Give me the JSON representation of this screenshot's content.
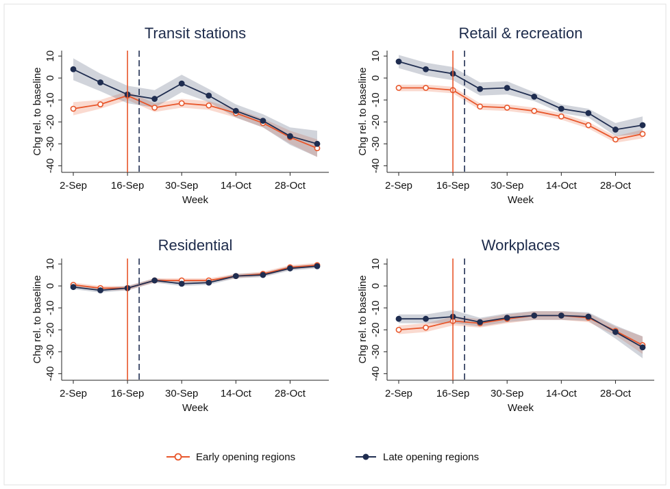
{
  "chart_data": [
    {
      "type": "line",
      "title": "Transit stations",
      "ylabel": "Chg rel. to baseline",
      "xlabel": "Week",
      "categories": [
        "2-Sep",
        null,
        "16-Sep",
        null,
        "30-Sep",
        null,
        "14-Oct",
        null,
        "28-Oct",
        null
      ],
      "ylim": [
        -43,
        12.5
      ],
      "yticks": [
        -40,
        -30,
        -20,
        -10,
        0,
        10
      ],
      "vlines": [
        {
          "at": 2,
          "color": "#e8562a",
          "dash": false
        },
        {
          "at": 2.43,
          "color": "#1f2d50",
          "dash": true
        }
      ],
      "series": [
        {
          "name": "Early opening regions",
          "color": "#e8562a",
          "marker": "hollow",
          "values": [
            -14,
            -12,
            -8,
            -13.5,
            -11.5,
            -12.5,
            -16,
            -20.5,
            -27,
            -32
          ],
          "lower": [
            -17,
            -14,
            -10,
            -15.5,
            -13.5,
            -14.5,
            -18,
            -22.5,
            -30,
            -36
          ],
          "upper": [
            -11,
            -10,
            -6,
            -11.5,
            -9.5,
            -10.5,
            -14,
            -18.5,
            -24,
            -28
          ]
        },
        {
          "name": "Late opening regions",
          "color": "#1f2d50",
          "marker": "filled",
          "values": [
            4,
            -2,
            -7.5,
            -9.5,
            -2.5,
            -8,
            -15,
            -19.5,
            -26.5,
            -30
          ],
          "lower": [
            -1,
            -6,
            -11.5,
            -13.5,
            -6.5,
            -11,
            -18,
            -22.5,
            -30.5,
            -36
          ],
          "upper": [
            9,
            2,
            -3.5,
            -5.5,
            1.5,
            -5,
            -12,
            -16.5,
            -22.5,
            -24
          ]
        }
      ]
    },
    {
      "type": "line",
      "title": "Retail & recreation",
      "ylabel": "Chg rel. to baseline",
      "xlabel": "Week",
      "categories": [
        "2-Sep",
        null,
        "16-Sep",
        null,
        "30-Sep",
        null,
        "14-Oct",
        null,
        "28-Oct",
        null
      ],
      "ylim": [
        -43,
        12.5
      ],
      "yticks": [
        -40,
        -30,
        -20,
        -10,
        0,
        10
      ],
      "vlines": [
        {
          "at": 2,
          "color": "#e8562a",
          "dash": false
        },
        {
          "at": 2.43,
          "color": "#1f2d50",
          "dash": true
        }
      ],
      "series": [
        {
          "color": "#e8562a",
          "marker": "hollow",
          "values": [
            -4.5,
            -4.5,
            -5.5,
            -13,
            -13.5,
            -15,
            -17.5,
            -21.5,
            -28,
            -25.5
          ],
          "lower": [
            -6,
            -6,
            -7,
            -14.5,
            -15,
            -16.5,
            -19,
            -23,
            -29.5,
            -27.5
          ],
          "upper": [
            -3,
            -3,
            -4,
            -11.5,
            -12,
            -13.5,
            -16,
            -20,
            -26.5,
            -23.5
          ]
        },
        {
          "color": "#1f2d50",
          "marker": "filled",
          "values": [
            7.5,
            4,
            2,
            -5,
            -4.5,
            -8.5,
            -14,
            -16,
            -23.5,
            -21.5
          ],
          "lower": [
            4.5,
            1,
            -1,
            -8,
            -7.5,
            -10.5,
            -16,
            -18,
            -26.5,
            -25.5
          ],
          "upper": [
            10.5,
            7,
            5,
            -2,
            -1.5,
            -6.5,
            -12,
            -14,
            -20.5,
            -17.5
          ]
        }
      ]
    },
    {
      "type": "line",
      "title": "Residential",
      "ylabel": "Chg rel. to baseline",
      "xlabel": "Week",
      "categories": [
        "2-Sep",
        null,
        "16-Sep",
        null,
        "30-Sep",
        null,
        "14-Oct",
        null,
        "28-Oct",
        null
      ],
      "ylim": [
        -43,
        12.5
      ],
      "yticks": [
        -40,
        -30,
        -20,
        -10,
        0,
        10
      ],
      "vlines": [
        {
          "at": 2,
          "color": "#e8562a",
          "dash": false
        },
        {
          "at": 2.43,
          "color": "#1f2d50",
          "dash": true
        }
      ],
      "series": [
        {
          "color": "#e8562a",
          "marker": "hollow",
          "values": [
            0.5,
            -1,
            -1,
            2.5,
            2.5,
            2.5,
            4.5,
            5.5,
            8.5,
            9.5
          ],
          "lower": [
            -0.5,
            -2,
            -2,
            1.5,
            1.5,
            1.5,
            3.5,
            4.5,
            7.5,
            8.5
          ],
          "upper": [
            1.5,
            0,
            0,
            3.5,
            3.5,
            3.5,
            5.5,
            6.5,
            9.5,
            10.5
          ]
        },
        {
          "color": "#1f2d50",
          "marker": "filled",
          "values": [
            -0.5,
            -2,
            -1,
            2.5,
            1,
            1.5,
            4.5,
            5,
            8,
            9
          ],
          "lower": [
            -1.5,
            -3,
            -2,
            1.5,
            0,
            0.5,
            3.5,
            4,
            7,
            8
          ],
          "upper": [
            0.5,
            -1,
            0,
            3.5,
            2,
            2.5,
            5.5,
            6,
            9,
            10
          ]
        }
      ]
    },
    {
      "type": "line",
      "title": "Workplaces",
      "ylabel": "Chg rel. to baseline",
      "xlabel": "Week",
      "categories": [
        "2-Sep",
        null,
        "16-Sep",
        null,
        "30-Sep",
        null,
        "14-Oct",
        null,
        "28-Oct",
        null
      ],
      "ylim": [
        -43,
        12.5
      ],
      "yticks": [
        -40,
        -30,
        -20,
        -10,
        0,
        10
      ],
      "vlines": [
        {
          "at": 2,
          "color": "#e8562a",
          "dash": false
        },
        {
          "at": 2.43,
          "color": "#1f2d50",
          "dash": true
        }
      ],
      "series": [
        {
          "color": "#e8562a",
          "marker": "hollow",
          "values": [
            -20,
            -19,
            -16,
            -17,
            -15,
            -13.5,
            -13.5,
            -14.5,
            -20.5,
            -27
          ],
          "lower": [
            -22,
            -21,
            -18,
            -19,
            -17,
            -15.5,
            -15.5,
            -16.5,
            -22.5,
            -31
          ],
          "upper": [
            -18,
            -17,
            -14,
            -15,
            -13,
            -11.5,
            -11.5,
            -12.5,
            -18.5,
            -23
          ]
        },
        {
          "color": "#1f2d50",
          "marker": "filled",
          "values": [
            -15,
            -15,
            -14,
            -16.5,
            -14.5,
            -13.5,
            -13.5,
            -14,
            -21,
            -28
          ],
          "lower": [
            -17,
            -17,
            -17,
            -18.5,
            -16.5,
            -15.5,
            -15.5,
            -16,
            -24,
            -33
          ],
          "upper": [
            -13,
            -13,
            -11,
            -14.5,
            -12.5,
            -11.5,
            -11.5,
            -12,
            -18,
            -23
          ]
        }
      ]
    }
  ]
}
